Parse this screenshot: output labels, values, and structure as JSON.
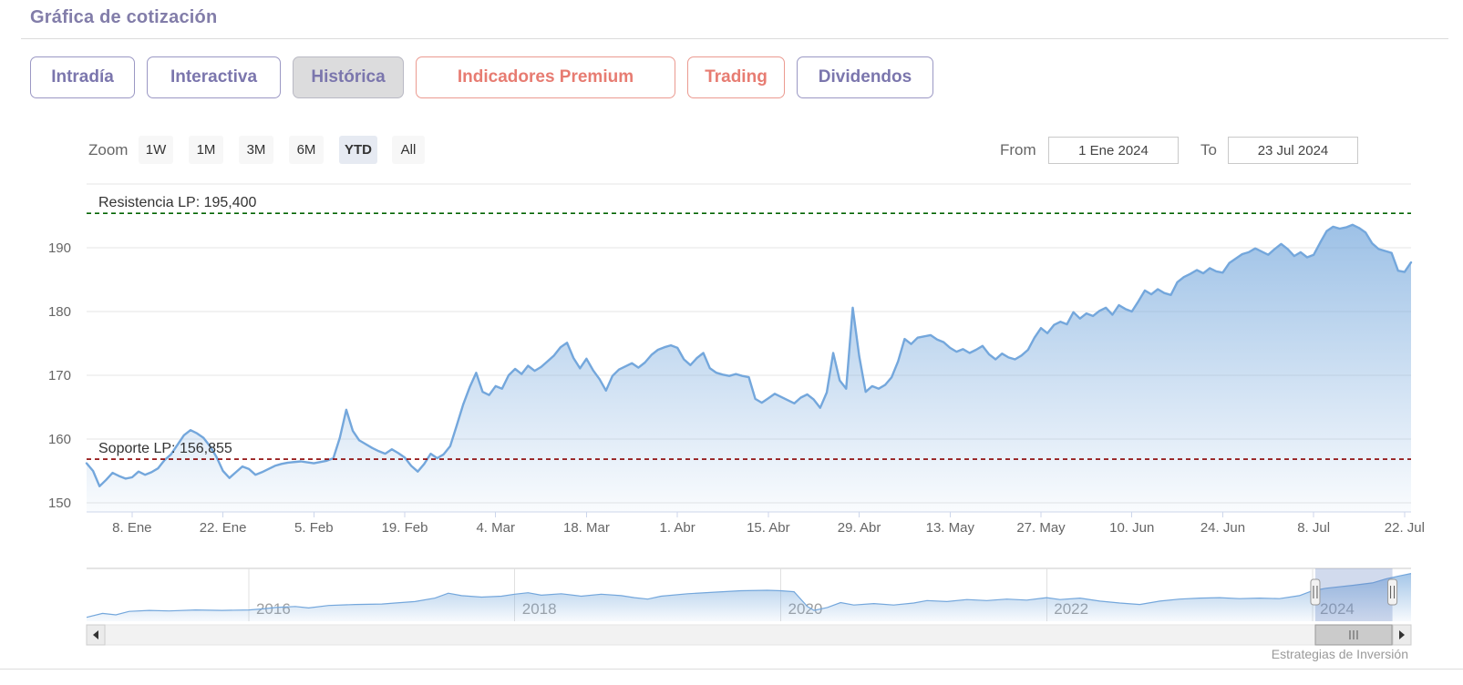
{
  "page": {
    "title": "Gráfica de cotización",
    "credit": "Estrategias de Inversión"
  },
  "tabs": [
    {
      "label": "Intradía",
      "variant": "purple",
      "active": false
    },
    {
      "label": "Interactiva",
      "variant": "purple",
      "active": false
    },
    {
      "label": "Histórica",
      "variant": "purple",
      "active": true
    },
    {
      "label": "Indicadores Premium",
      "variant": "red",
      "active": false
    },
    {
      "label": "Trading",
      "variant": "red",
      "active": false
    },
    {
      "label": "Dividendos",
      "variant": "purple",
      "active": false
    }
  ],
  "toolbar": {
    "zoom_label": "Zoom",
    "range_buttons": [
      "1W",
      "1M",
      "3M",
      "6M",
      "YTD",
      "All"
    ],
    "active_range": "YTD",
    "from_label": "From",
    "from_value": "1 Ene 2024",
    "to_label": "To",
    "to_value": "23 Jul 2024"
  },
  "colors": {
    "accent_purple": "#7b76ad",
    "accent_red": "#e77c72",
    "series_line": "#74a7dc",
    "series_fill_top": "rgba(116,167,220,0.7)",
    "series_fill_bottom": "rgba(116,167,220,0.04)",
    "resistance": "#006400",
    "support": "#8b0000",
    "gridline": "#e6e6e6",
    "axis_line": "#ccd6eb",
    "axis_text": "#666666",
    "nav_mask": "rgba(102,133,194,0.3)"
  },
  "chart_data": [
    {
      "name": "price-history-main",
      "type": "area",
      "title": "",
      "xlabel": "",
      "ylabel": "",
      "x_unit": "days since 1 Ene 2024",
      "x_range": [
        0,
        204
      ],
      "ylim": [
        148.5,
        200
      ],
      "grid": true,
      "y_ticks": [
        150,
        160,
        170,
        180,
        190
      ],
      "x_ticks": [
        {
          "label": "8. Ene",
          "day": 7
        },
        {
          "label": "22. Ene",
          "day": 21
        },
        {
          "label": "5. Feb",
          "day": 35
        },
        {
          "label": "19. Feb",
          "day": 49
        },
        {
          "label": "4. Mar",
          "day": 63
        },
        {
          "label": "18. Mar",
          "day": 77
        },
        {
          "label": "1. Abr",
          "day": 91
        },
        {
          "label": "15. Abr",
          "day": 105
        },
        {
          "label": "29. Abr",
          "day": 119
        },
        {
          "label": "13. May",
          "day": 133
        },
        {
          "label": "27. May",
          "day": 147
        },
        {
          "label": "10. Jun",
          "day": 161
        },
        {
          "label": "24. Jun",
          "day": 175
        },
        {
          "label": "8. Jul",
          "day": 189
        },
        {
          "label": "22. Jul",
          "day": 203
        }
      ],
      "annotations": [
        {
          "label": "Resistencia LP: 195,400",
          "value": 195.4,
          "color": "#006400"
        },
        {
          "label": "Soporte LP: 156,855",
          "value": 156.855,
          "color": "#8b0000"
        }
      ],
      "points": [
        [
          0,
          156.2
        ],
        [
          1,
          155.0
        ],
        [
          2,
          152.6
        ],
        [
          3,
          153.6
        ],
        [
          4,
          154.7
        ],
        [
          5,
          154.2
        ],
        [
          6,
          153.8
        ],
        [
          7,
          154.0
        ],
        [
          8,
          154.9
        ],
        [
          9,
          154.4
        ],
        [
          10,
          154.8
        ],
        [
          11,
          155.4
        ],
        [
          12,
          156.7
        ],
        [
          13,
          157.6
        ],
        [
          14,
          159.1
        ],
        [
          15,
          160.6
        ],
        [
          16,
          161.4
        ],
        [
          17,
          160.9
        ],
        [
          18,
          160.2
        ],
        [
          19,
          158.9
        ],
        [
          20,
          157.2
        ],
        [
          21,
          155.0
        ],
        [
          22,
          153.9
        ],
        [
          23,
          154.8
        ],
        [
          24,
          155.7
        ],
        [
          25,
          155.3
        ],
        [
          26,
          154.4
        ],
        [
          27,
          154.8
        ],
        [
          28,
          155.3
        ],
        [
          29,
          155.8
        ],
        [
          30,
          156.1
        ],
        [
          31,
          156.3
        ],
        [
          33,
          156.5
        ],
        [
          35,
          156.2
        ],
        [
          37,
          156.6
        ],
        [
          38,
          157.0
        ],
        [
          39,
          160.2
        ],
        [
          40,
          164.6
        ],
        [
          41,
          161.3
        ],
        [
          42,
          159.8
        ],
        [
          43,
          159.2
        ],
        [
          44,
          158.6
        ],
        [
          45,
          158.1
        ],
        [
          46,
          157.7
        ],
        [
          47,
          158.4
        ],
        [
          48,
          157.8
        ],
        [
          49,
          157.1
        ],
        [
          50,
          155.8
        ],
        [
          51,
          154.9
        ],
        [
          52,
          156.1
        ],
        [
          53,
          157.7
        ],
        [
          54,
          157.0
        ],
        [
          55,
          157.6
        ],
        [
          56,
          158.9
        ],
        [
          57,
          162.1
        ],
        [
          58,
          165.4
        ],
        [
          59,
          168.1
        ],
        [
          60,
          170.4
        ],
        [
          61,
          167.4
        ],
        [
          62,
          166.9
        ],
        [
          63,
          168.3
        ],
        [
          64,
          167.9
        ],
        [
          65,
          170.0
        ],
        [
          66,
          171.0
        ],
        [
          67,
          170.2
        ],
        [
          68,
          171.5
        ],
        [
          69,
          170.7
        ],
        [
          70,
          171.3
        ],
        [
          71,
          172.2
        ],
        [
          72,
          173.1
        ],
        [
          73,
          174.4
        ],
        [
          74,
          175.1
        ],
        [
          75,
          172.7
        ],
        [
          76,
          171.1
        ],
        [
          77,
          172.6
        ],
        [
          78,
          170.8
        ],
        [
          79,
          169.4
        ],
        [
          80,
          167.6
        ],
        [
          81,
          169.9
        ],
        [
          82,
          170.9
        ],
        [
          83,
          171.4
        ],
        [
          84,
          171.9
        ],
        [
          85,
          171.2
        ],
        [
          86,
          172.0
        ],
        [
          87,
          173.2
        ],
        [
          88,
          174.0
        ],
        [
          89,
          174.4
        ],
        [
          90,
          174.7
        ],
        [
          91,
          174.3
        ],
        [
          92,
          172.5
        ],
        [
          93,
          171.6
        ],
        [
          94,
          172.7
        ],
        [
          95,
          173.5
        ],
        [
          96,
          171.1
        ],
        [
          97,
          170.4
        ],
        [
          98,
          170.1
        ],
        [
          99,
          169.9
        ],
        [
          100,
          170.2
        ],
        [
          101,
          169.9
        ],
        [
          102,
          169.7
        ],
        [
          103,
          166.3
        ],
        [
          104,
          165.7
        ],
        [
          105,
          166.4
        ],
        [
          106,
          167.1
        ],
        [
          107,
          166.6
        ],
        [
          108,
          166.1
        ],
        [
          109,
          165.6
        ],
        [
          110,
          166.5
        ],
        [
          111,
          167.0
        ],
        [
          112,
          166.2
        ],
        [
          113,
          164.9
        ],
        [
          114,
          167.3
        ],
        [
          115,
          173.5
        ],
        [
          116,
          169.2
        ],
        [
          117,
          167.9
        ],
        [
          118,
          180.6
        ],
        [
          119,
          173.0
        ],
        [
          120,
          167.4
        ],
        [
          121,
          168.3
        ],
        [
          122,
          167.9
        ],
        [
          123,
          168.5
        ],
        [
          124,
          169.7
        ],
        [
          125,
          172.2
        ],
        [
          126,
          175.7
        ],
        [
          127,
          174.9
        ],
        [
          128,
          175.9
        ],
        [
          129,
          176.1
        ],
        [
          130,
          176.3
        ],
        [
          131,
          175.6
        ],
        [
          132,
          175.2
        ],
        [
          133,
          174.3
        ],
        [
          134,
          173.7
        ],
        [
          135,
          174.1
        ],
        [
          136,
          173.5
        ],
        [
          137,
          174.0
        ],
        [
          138,
          174.6
        ],
        [
          139,
          173.3
        ],
        [
          140,
          172.5
        ],
        [
          141,
          173.4
        ],
        [
          142,
          172.8
        ],
        [
          143,
          172.5
        ],
        [
          144,
          173.1
        ],
        [
          145,
          174.0
        ],
        [
          146,
          175.9
        ],
        [
          147,
          177.4
        ],
        [
          148,
          176.6
        ],
        [
          149,
          177.9
        ],
        [
          150,
          178.4
        ],
        [
          151,
          178.0
        ],
        [
          152,
          179.9
        ],
        [
          153,
          178.9
        ],
        [
          154,
          179.7
        ],
        [
          155,
          179.3
        ],
        [
          156,
          180.1
        ],
        [
          157,
          180.6
        ],
        [
          158,
          179.5
        ],
        [
          159,
          181.0
        ],
        [
          160,
          180.4
        ],
        [
          161,
          180.0
        ],
        [
          162,
          181.6
        ],
        [
          163,
          183.3
        ],
        [
          164,
          182.7
        ],
        [
          165,
          183.5
        ],
        [
          166,
          182.9
        ],
        [
          167,
          182.6
        ],
        [
          168,
          184.6
        ],
        [
          169,
          185.4
        ],
        [
          170,
          185.9
        ],
        [
          171,
          186.5
        ],
        [
          172,
          186.0
        ],
        [
          173,
          186.8
        ],
        [
          174,
          186.3
        ],
        [
          175,
          186.1
        ],
        [
          176,
          187.6
        ],
        [
          177,
          188.3
        ],
        [
          178,
          189.0
        ],
        [
          179,
          189.3
        ],
        [
          180,
          189.9
        ],
        [
          181,
          189.4
        ],
        [
          182,
          188.9
        ],
        [
          183,
          189.8
        ],
        [
          184,
          190.6
        ],
        [
          185,
          189.8
        ],
        [
          186,
          188.7
        ],
        [
          187,
          189.3
        ],
        [
          188,
          188.5
        ],
        [
          189,
          188.9
        ],
        [
          190,
          190.8
        ],
        [
          191,
          192.6
        ],
        [
          192,
          193.3
        ],
        [
          193,
          193.0
        ],
        [
          194,
          193.2
        ],
        [
          195,
          193.6
        ],
        [
          196,
          193.1
        ],
        [
          197,
          192.4
        ],
        [
          198,
          190.7
        ],
        [
          199,
          189.8
        ],
        [
          200,
          189.5
        ],
        [
          201,
          189.2
        ],
        [
          202,
          186.4
        ],
        [
          203,
          186.2
        ],
        [
          204,
          187.7
        ]
      ]
    },
    {
      "name": "navigator-overview",
      "type": "area",
      "x_unit": "year",
      "x_range": [
        2014.78,
        2024.74
      ],
      "year_ticks": [
        "2016",
        "2018",
        "2020",
        "2022",
        "2024"
      ],
      "selected_range": {
        "from_year": 2024.02,
        "to_year": 2024.6
      },
      "points": [
        [
          2014.78,
          0.08
        ],
        [
          2014.9,
          0.16
        ],
        [
          2015.0,
          0.13
        ],
        [
          2015.1,
          0.2
        ],
        [
          2015.25,
          0.22
        ],
        [
          2015.4,
          0.21
        ],
        [
          2015.6,
          0.23
        ],
        [
          2015.8,
          0.22
        ],
        [
          2016.0,
          0.23
        ],
        [
          2016.1,
          0.25
        ],
        [
          2016.2,
          0.28
        ],
        [
          2016.35,
          0.3
        ],
        [
          2016.45,
          0.27
        ],
        [
          2016.6,
          0.32
        ],
        [
          2016.8,
          0.34
        ],
        [
          2017.0,
          0.35
        ],
        [
          2017.1,
          0.37
        ],
        [
          2017.25,
          0.4
        ],
        [
          2017.4,
          0.47
        ],
        [
          2017.5,
          0.57
        ],
        [
          2017.6,
          0.52
        ],
        [
          2017.75,
          0.49
        ],
        [
          2017.9,
          0.51
        ],
        [
          2018.0,
          0.55
        ],
        [
          2018.1,
          0.58
        ],
        [
          2018.2,
          0.53
        ],
        [
          2018.35,
          0.56
        ],
        [
          2018.5,
          0.51
        ],
        [
          2018.65,
          0.55
        ],
        [
          2018.8,
          0.52
        ],
        [
          2018.9,
          0.48
        ],
        [
          2019.0,
          0.45
        ],
        [
          2019.1,
          0.51
        ],
        [
          2019.3,
          0.56
        ],
        [
          2019.5,
          0.59
        ],
        [
          2019.7,
          0.62
        ],
        [
          2019.9,
          0.63
        ],
        [
          2020.0,
          0.62
        ],
        [
          2020.1,
          0.6
        ],
        [
          2020.2,
          0.3
        ],
        [
          2020.25,
          0.22
        ],
        [
          2020.35,
          0.28
        ],
        [
          2020.45,
          0.38
        ],
        [
          2020.55,
          0.33
        ],
        [
          2020.7,
          0.36
        ],
        [
          2020.85,
          0.33
        ],
        [
          2021.0,
          0.37
        ],
        [
          2021.1,
          0.42
        ],
        [
          2021.25,
          0.4
        ],
        [
          2021.4,
          0.44
        ],
        [
          2021.55,
          0.42
        ],
        [
          2021.7,
          0.45
        ],
        [
          2021.85,
          0.43
        ],
        [
          2022.0,
          0.48
        ],
        [
          2022.1,
          0.44
        ],
        [
          2022.25,
          0.47
        ],
        [
          2022.4,
          0.41
        ],
        [
          2022.55,
          0.37
        ],
        [
          2022.7,
          0.34
        ],
        [
          2022.85,
          0.41
        ],
        [
          2023.0,
          0.45
        ],
        [
          2023.15,
          0.47
        ],
        [
          2023.3,
          0.48
        ],
        [
          2023.45,
          0.46
        ],
        [
          2023.6,
          0.47
        ],
        [
          2023.75,
          0.46
        ],
        [
          2023.9,
          0.52
        ],
        [
          2024.0,
          0.62
        ],
        [
          2024.1,
          0.67
        ],
        [
          2024.2,
          0.7
        ],
        [
          2024.3,
          0.73
        ],
        [
          2024.45,
          0.78
        ],
        [
          2024.55,
          0.86
        ],
        [
          2024.65,
          0.92
        ],
        [
          2024.74,
          0.97
        ]
      ]
    }
  ]
}
